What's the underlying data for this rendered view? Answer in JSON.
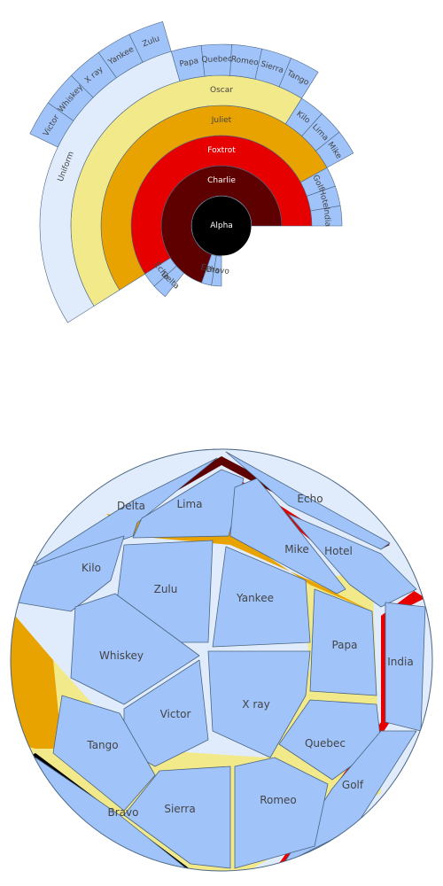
{
  "colors": {
    "root": "#000000",
    "level1": "#5f0000",
    "level2": "#e60000",
    "level3": "#e8a300",
    "level4": "#f2e98a",
    "level4_light": "#e0ecfc",
    "leaf": "#a0c4fa",
    "stroke": "#4a6583"
  },
  "chart_data": [
    {
      "type": "sunburst",
      "start_angle_deg": 0,
      "sweep_deg": 270,
      "nodes": [
        {
          "name": "Alpha",
          "parent": "",
          "value": 28
        },
        {
          "name": "Charlie",
          "parent": "Alpha",
          "value": 26
        },
        {
          "name": "Echo",
          "parent": "Alpha",
          "value": 1
        },
        {
          "name": "Bravo",
          "parent": "Alpha",
          "value": 1
        },
        {
          "name": "Foxtrot",
          "parent": "Charlie",
          "value": 22
        },
        {
          "name": "Echo",
          "parent": "Charlie",
          "value": 1
        },
        {
          "name": "Delta",
          "parent": "Charlie",
          "value": 1
        },
        {
          "name": "India",
          "parent": "Foxtrot",
          "value": 1
        },
        {
          "name": "Hotel",
          "parent": "Foxtrot",
          "value": 1
        },
        {
          "name": "Golf",
          "parent": "Foxtrot",
          "value": 1
        },
        {
          "name": "Juliet",
          "parent": "Foxtrot",
          "value": 19
        },
        {
          "name": "Mike",
          "parent": "Juliet",
          "value": 1
        },
        {
          "name": "Lima",
          "parent": "Juliet",
          "value": 1
        },
        {
          "name": "Kilo",
          "parent": "Juliet",
          "value": 1
        },
        {
          "name": "Oscar",
          "parent": "Juliet",
          "value": 16
        },
        {
          "name": "Tango",
          "parent": "Oscar",
          "value": 1
        },
        {
          "name": "Sierra",
          "parent": "Oscar",
          "value": 1
        },
        {
          "name": "Romeo",
          "parent": "Oscar",
          "value": 1
        },
        {
          "name": "Quebec",
          "parent": "Oscar",
          "value": 1
        },
        {
          "name": "Papa",
          "parent": "Oscar",
          "value": 1
        },
        {
          "name": "Uniform",
          "parent": "Oscar",
          "value": 11
        },
        {
          "name": "Zulu",
          "parent": "Uniform",
          "value": 1
        },
        {
          "name": "Yankee",
          "parent": "Uniform",
          "value": 1
        },
        {
          "name": "X ray",
          "parent": "Uniform",
          "value": 1
        },
        {
          "name": "Whiskey",
          "parent": "Uniform",
          "value": 1
        },
        {
          "name": "Victor",
          "parent": "Uniform",
          "value": 1
        }
      ]
    },
    {
      "type": "voronoi_treemap",
      "groups": [
        "Alpha",
        "Charlie",
        "Foxtrot",
        "Juliet",
        "Oscar",
        "Uniform"
      ],
      "leaves": [
        "Delta",
        "Echo",
        "Lima",
        "Mike",
        "Hotel",
        "Kilo",
        "Zulu",
        "Yankee",
        "Papa",
        "India",
        "Whiskey",
        "X ray",
        "Victor",
        "Quebec",
        "Tango",
        "Golf",
        "Romeo",
        "Sierra",
        "Bravo"
      ]
    }
  ]
}
